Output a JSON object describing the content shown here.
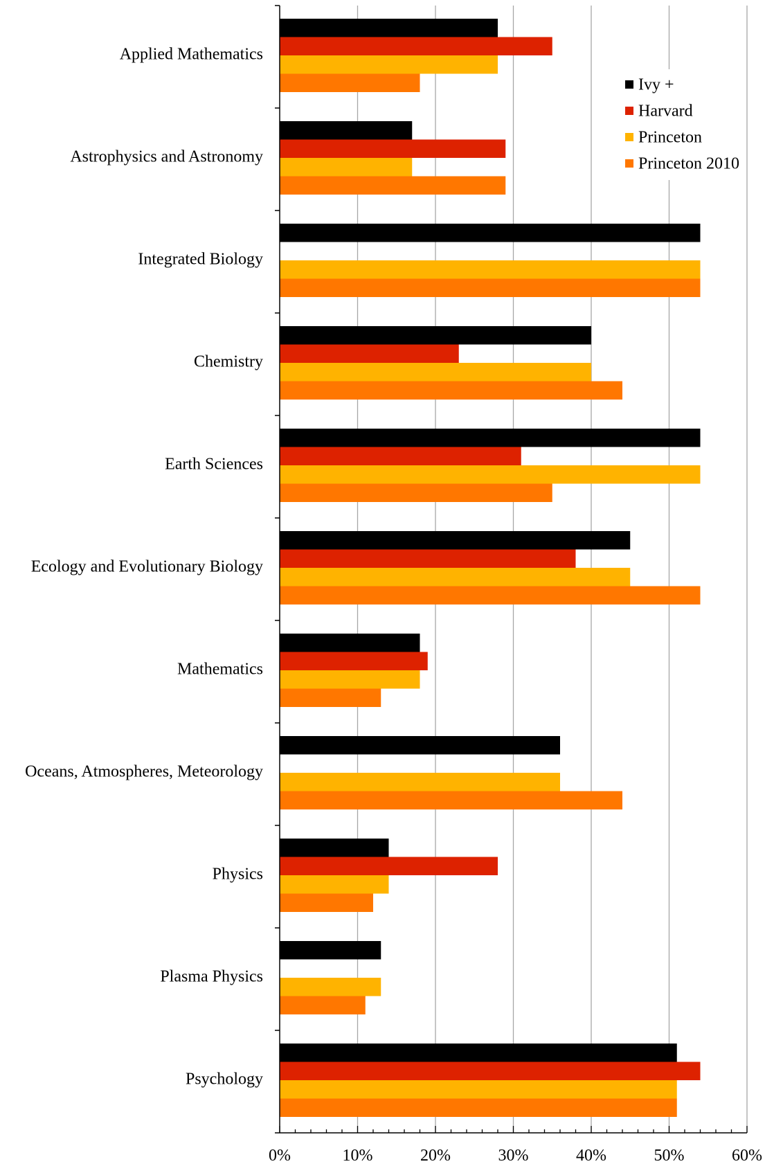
{
  "chart_data": {
    "type": "bar",
    "orientation": "horizontal",
    "categories": [
      "Applied Mathematics",
      "Astrophysics and Astronomy",
      "Integrated Biology",
      "Chemistry",
      "Earth Sciences",
      "Ecology and Evolutionary Biology",
      "Mathematics",
      "Oceans, Atmospheres, Meteorology",
      "Physics",
      "Plasma Physics",
      "Psychology"
    ],
    "series": [
      {
        "name": "Ivy +",
        "color": "#000000",
        "values": [
          28,
          17,
          54,
          40,
          54,
          45,
          18,
          36,
          14,
          13,
          51
        ]
      },
      {
        "name": "Harvard",
        "color": "#dd2200",
        "values": [
          35,
          29,
          0,
          23,
          31,
          38,
          19,
          0,
          28,
          0,
          54
        ]
      },
      {
        "name": "Princeton",
        "color": "#ffb300",
        "values": [
          28,
          17,
          54,
          40,
          54,
          45,
          18,
          36,
          14,
          13,
          51
        ]
      },
      {
        "name": "Princeton 2010",
        "color": "#ff7700",
        "values": [
          18,
          29,
          54,
          44,
          35,
          54,
          13,
          44,
          12,
          11,
          51
        ]
      }
    ],
    "xlim": [
      0,
      60
    ],
    "xticks": [
      0,
      10,
      20,
      30,
      40,
      50,
      60
    ],
    "xtick_labels": [
      "0%",
      "10%",
      "20%",
      "30%",
      "40%",
      "50%",
      "60%"
    ],
    "grid": "vertical",
    "legend_position": "top-right"
  }
}
